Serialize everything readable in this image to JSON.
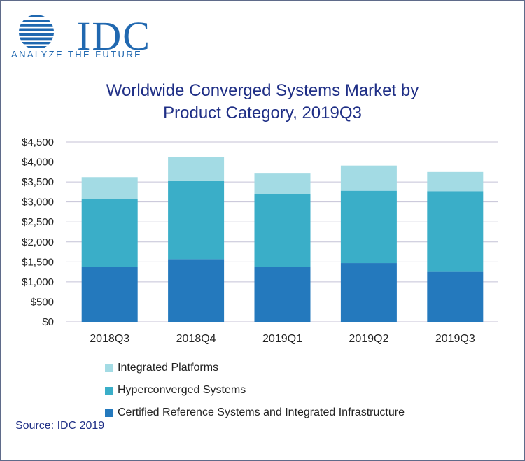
{
  "logo": {
    "text": "IDC",
    "tagline": "ANALYZE THE FUTURE"
  },
  "title_line1": "Worldwide Converged Systems Market by",
  "title_line2": "Product Category, 2019Q3",
  "source": "Source: IDC 2019",
  "colors": {
    "certified": "#2479bd",
    "hyperconverged": "#3aaec8",
    "integrated": "#a3dbe4",
    "grid": "#c4c2d6",
    "text": "#222222"
  },
  "chart_data": {
    "type": "bar",
    "stacked": true,
    "categories": [
      "2018Q3",
      "2018Q4",
      "2019Q1",
      "2019Q2",
      "2019Q3"
    ],
    "series": [
      {
        "name": "Certified Reference Systems and Integrated Infrastructure",
        "color": "#2479bd",
        "values": [
          1380,
          1570,
          1370,
          1470,
          1250
        ]
      },
      {
        "name": "Hyperconverged Systems",
        "color": "#3aaec8",
        "values": [
          1690,
          1950,
          1820,
          1810,
          2020
        ]
      },
      {
        "name": "Integrated Platforms",
        "color": "#a3dbe4",
        "values": [
          550,
          610,
          520,
          630,
          480
        ]
      }
    ],
    "ylim": [
      0,
      4500
    ],
    "yticks": [
      "$0",
      "$500",
      "$1,000",
      "$1,500",
      "$2,000",
      "$2,500",
      "$3,000",
      "$3,500",
      "$4,000",
      "$4,500"
    ],
    "grid": true,
    "legend": [
      "Integrated Platforms",
      "Hyperconverged Systems",
      "Certified Reference Systems and Integrated Infrastructure"
    ],
    "legend_position": "bottom-left"
  }
}
